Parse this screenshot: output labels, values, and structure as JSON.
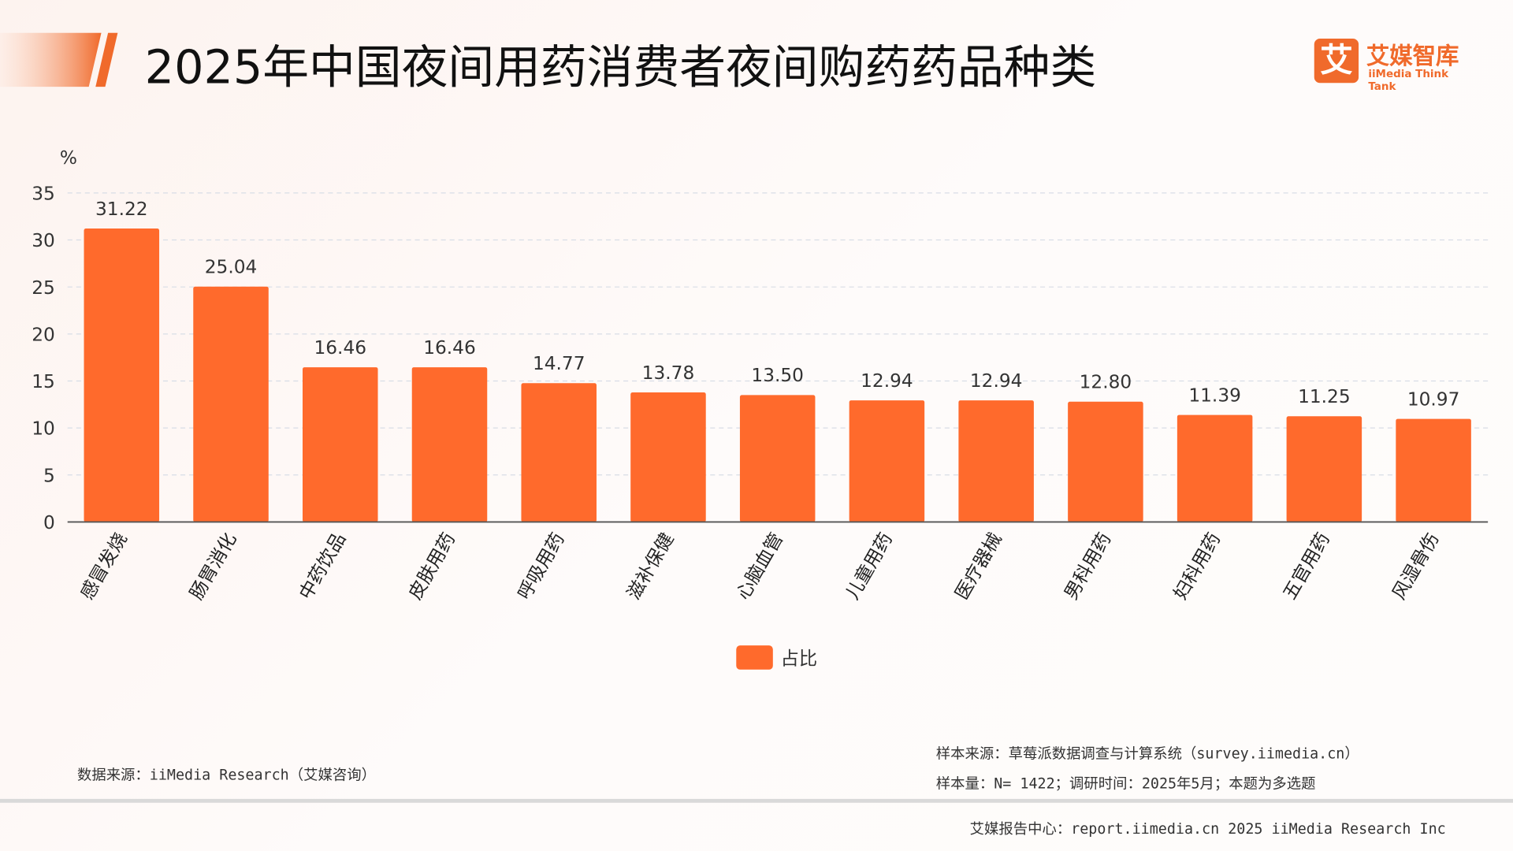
{
  "title": "2025年中国夜间用药消费者夜间购药药品种类",
  "logo": {
    "mark": "艾",
    "name_cn": "艾媒智库",
    "name_en": "iiMedia Think Tank"
  },
  "colors": {
    "bar": "#ff6a2c",
    "accent": "#f06a2b",
    "grid": "#d8dde6"
  },
  "chart_data": {
    "type": "bar",
    "ylabel": "%",
    "ylim": [
      0,
      35
    ],
    "yticks": [
      0,
      5,
      10,
      15,
      20,
      25,
      30,
      35
    ],
    "grid": true,
    "legend_position": "bottom",
    "categories": [
      "感冒发烧",
      "肠胃消化",
      "中药饮品",
      "皮肤用药",
      "呼吸用药",
      "滋补保健",
      "心脑血管",
      "儿童用药",
      "医疗器械",
      "男科用药",
      "妇科用药",
      "五官用药",
      "风湿骨伤"
    ],
    "series": [
      {
        "name": "占比",
        "values": [
          31.22,
          25.04,
          16.46,
          16.46,
          14.77,
          13.78,
          13.5,
          12.94,
          12.94,
          12.8,
          11.39,
          11.25,
          10.97
        ]
      }
    ]
  },
  "footer": {
    "data_source": "数据来源：iiMedia Research（艾媒咨询）",
    "sample_source": "样本来源：草莓派数据调查与计算系统（survey.iimedia.cn）",
    "sample_size": "样本量：N= 1422；调研时间：2025年5月；本题为多选题",
    "report_center": "艾媒报告中心：report.iimedia.cn   2025 iiMedia Research Inc"
  }
}
